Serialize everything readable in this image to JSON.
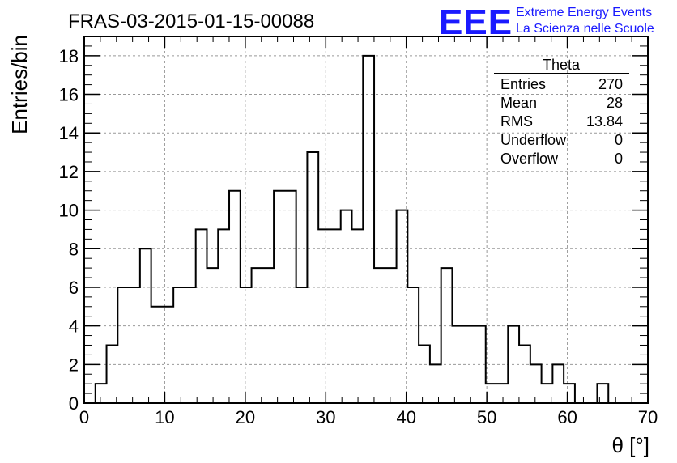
{
  "chart_data": {
    "type": "histogram",
    "title": "FRAS-03-2015-01-15-00088",
    "xlabel": "θ [°]",
    "ylabel": "Entries/bin",
    "xlim": [
      0,
      70
    ],
    "ylim": [
      0,
      19
    ],
    "grid": true,
    "x_ticks": [
      "0",
      "10",
      "20",
      "30",
      "40",
      "50",
      "60",
      "70"
    ],
    "y_ticks": [
      "0",
      "2",
      "4",
      "6",
      "8",
      "10",
      "12",
      "14",
      "16",
      "18"
    ],
    "bin_width": 1.385,
    "bin_edges_start": 1.385,
    "values": [
      1,
      3,
      6,
      6,
      8,
      5,
      5,
      6,
      6,
      9,
      7,
      9,
      11,
      6,
      7,
      7,
      11,
      11,
      6,
      13,
      9,
      9,
      10,
      9,
      18,
      7,
      7,
      10,
      6,
      3,
      2,
      7,
      4,
      4,
      4,
      1,
      1,
      4,
      3,
      2,
      1,
      2,
      1,
      0,
      0,
      1,
      0
    ],
    "line_color": "#000000"
  },
  "stats_box": {
    "title": "Theta",
    "rows": [
      {
        "label": "Entries",
        "value": "270"
      },
      {
        "label": "Mean",
        "value": "28"
      },
      {
        "label": "RMS",
        "value": "13.84"
      },
      {
        "label": "Underflow",
        "value": "0"
      },
      {
        "label": "Overflow",
        "value": "0"
      }
    ]
  },
  "logo": {
    "mark": "EEE",
    "line1": "Extreme Energy Events",
    "line2": "La Scienza nelle Scuole",
    "color": "#1a1aff"
  }
}
